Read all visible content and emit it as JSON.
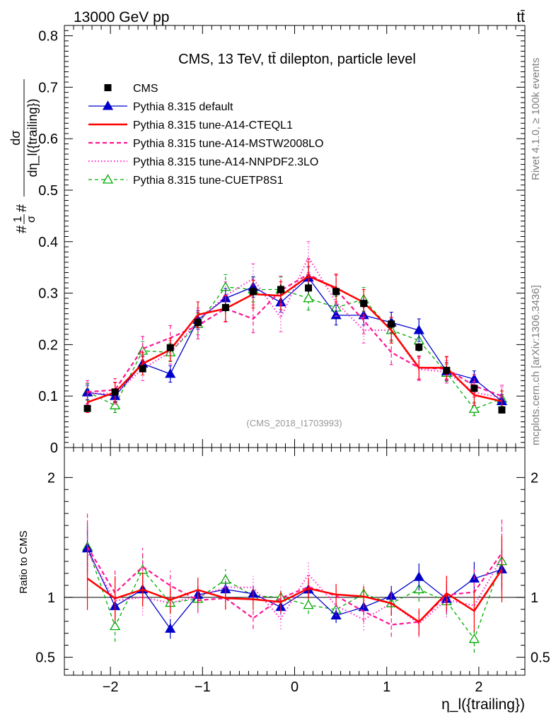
{
  "header": {
    "energy_label": "13000 GeV pp",
    "process_label": "tt̄",
    "rivet_label": "Rivet 4.1.0, ≥ 100k events",
    "site_label": "mcplots.cern.ch [arXiv:1306.3436]"
  },
  "chart_data": {
    "type": "line",
    "title": "CMS, 13 TeV, tt̄ dilepton, particle level",
    "analysis_id": "(CMS_2018_I1703993)",
    "xlabel": "η_l({trailing})",
    "ylabel_num": "#",
    "ylabel_frac_num": "1",
    "ylabel_frac_den": "σ",
    "ylabel_hash2": "#",
    "ylabel_deriv_num": "dσ",
    "ylabel_deriv_den": "dη_l({trailing})",
    "ratio_ylabel": "Ratio to CMS",
    "xlim": [
      -2.5,
      2.5
    ],
    "ylim": [
      0,
      0.82
    ],
    "ratio_ylim": [
      0.35,
      2.25
    ],
    "x_ticks": [
      -2,
      -1,
      0,
      1,
      2
    ],
    "x_tick_labels": [
      "−2",
      "−1",
      "0",
      "1",
      "2"
    ],
    "y_ticks": [
      0,
      0.1,
      0.2,
      0.3,
      0.4,
      0.5,
      0.6,
      0.7,
      0.8
    ],
    "y_tick_labels": [
      "0",
      "0.1",
      "0.2",
      "0.3",
      "0.4",
      "0.5",
      "0.6",
      "0.7",
      "0.8"
    ],
    "ratio_ticks": [
      0.5,
      1,
      2
    ],
    "ratio_tick_labels": [
      "0.5",
      "1",
      "2"
    ],
    "x": [
      -2.25,
      -1.95,
      -1.65,
      -1.35,
      -1.05,
      -0.75,
      -0.45,
      -0.15,
      0.15,
      0.45,
      0.75,
      1.05,
      1.35,
      1.65,
      1.95,
      2.25
    ],
    "data": {
      "name": "CMS",
      "values": [
        0.076,
        0.108,
        0.153,
        0.194,
        0.243,
        0.272,
        0.303,
        0.307,
        0.31,
        0.303,
        0.28,
        0.24,
        0.195,
        0.15,
        0.115,
        0.073
      ],
      "errors": [
        0.005,
        0.006,
        0.007,
        0.008,
        0.009,
        0.009,
        0.01,
        0.01,
        0.01,
        0.01,
        0.009,
        0.009,
        0.008,
        0.007,
        0.006,
        0.005
      ]
    },
    "series": [
      {
        "name": "Pythia 8.315 default",
        "color": "#0000cc",
        "dash": "",
        "width": 1.3,
        "marker": "triangle-filled",
        "values": [
          0.107,
          0.1,
          0.163,
          0.143,
          0.248,
          0.29,
          0.312,
          0.282,
          0.33,
          0.257,
          0.257,
          0.243,
          0.228,
          0.148,
          0.133,
          0.09
        ],
        "errors": [
          0.014,
          0.012,
          0.015,
          0.016,
          0.018,
          0.019,
          0.02,
          0.019,
          0.021,
          0.019,
          0.019,
          0.02,
          0.022,
          0.017,
          0.016,
          0.013
        ]
      },
      {
        "name": "Pythia 8.315 tune-A14-CTEQL1",
        "color": "#ff0000",
        "dash": "",
        "width": 2.5,
        "marker": "",
        "values": [
          0.088,
          0.107,
          0.163,
          0.19,
          0.258,
          0.27,
          0.298,
          0.295,
          0.333,
          0.31,
          0.282,
          0.228,
          0.155,
          0.155,
          0.102,
          0.09
        ],
        "errors": [
          0.02,
          0.02,
          0.022,
          0.022,
          0.025,
          0.025,
          0.027,
          0.027,
          0.028,
          0.027,
          0.025,
          0.025,
          0.022,
          0.022,
          0.02,
          0.02
        ]
      },
      {
        "name": "Pythia 8.315 tune-A14-MSTW2008LO",
        "color": "#ff1493",
        "dash": "6,4",
        "width": 2.2,
        "marker": "",
        "values": [
          0.108,
          0.112,
          0.192,
          0.213,
          0.237,
          0.27,
          0.25,
          0.305,
          0.337,
          0.307,
          0.247,
          0.185,
          0.155,
          0.153,
          0.12,
          0.1
        ],
        "errors": [
          0.022,
          0.022,
          0.024,
          0.024,
          0.026,
          0.026,
          0.027,
          0.028,
          0.029,
          0.028,
          0.026,
          0.024,
          0.023,
          0.023,
          0.022,
          0.021
        ]
      },
      {
        "name": "Pythia 8.315 tune-A14-NNPDF2.3LO",
        "color": "#ff33cc",
        "dash": "1.5,3",
        "width": 2.2,
        "marker": "",
        "values": [
          0.105,
          0.105,
          0.153,
          0.185,
          0.245,
          0.295,
          0.328,
          0.252,
          0.37,
          0.282,
          0.228,
          0.228,
          0.152,
          0.147,
          0.107,
          0.097
        ],
        "errors": [
          0.021,
          0.021,
          0.023,
          0.023,
          0.026,
          0.027,
          0.029,
          0.027,
          0.03,
          0.027,
          0.025,
          0.025,
          0.022,
          0.022,
          0.021,
          0.021
        ]
      },
      {
        "name": "Pythia 8.315 tune-CUETP8S1",
        "color": "#00aa00",
        "dash": "5,4",
        "width": 1.3,
        "marker": "triangle-open",
        "values": [
          0.108,
          0.082,
          0.188,
          0.185,
          0.24,
          0.312,
          0.307,
          0.307,
          0.29,
          0.272,
          0.288,
          0.228,
          0.208,
          0.145,
          0.075,
          0.095
        ],
        "errors": [
          0.016,
          0.014,
          0.018,
          0.018,
          0.021,
          0.024,
          0.024,
          0.024,
          0.023,
          0.022,
          0.023,
          0.021,
          0.02,
          0.017,
          0.013,
          0.015
        ]
      }
    ]
  }
}
